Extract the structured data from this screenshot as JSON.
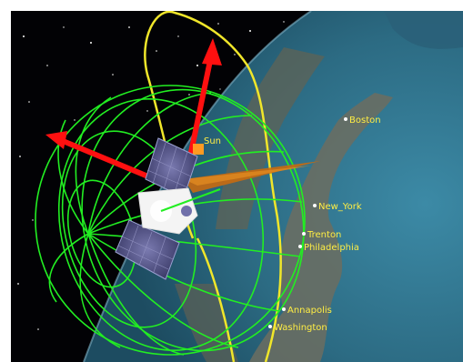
{
  "colors": {
    "space": "#020205",
    "ocean": "#2f6f86",
    "land": "#6b6b5c",
    "sphere_grid": "#22ee22",
    "orbit": "#f0e62a",
    "axis_arrow": "#ff1010",
    "sun_vector": "#c86a10",
    "label": "#ffee44"
  },
  "cities": [
    {
      "id": "boston",
      "label": "Boston"
    },
    {
      "id": "new-york",
      "label": "New_York"
    },
    {
      "id": "trenton",
      "label": "Trenton"
    },
    {
      "id": "philadelphia",
      "label": "Philadelphia"
    },
    {
      "id": "annapolis",
      "label": "Annapolis"
    },
    {
      "id": "washington",
      "label": "Washington"
    }
  ],
  "spacecraft_label": "Sun",
  "icons": [
    "satellite-icon",
    "body-axis-arrow-icon",
    "sun-vector-icon"
  ]
}
